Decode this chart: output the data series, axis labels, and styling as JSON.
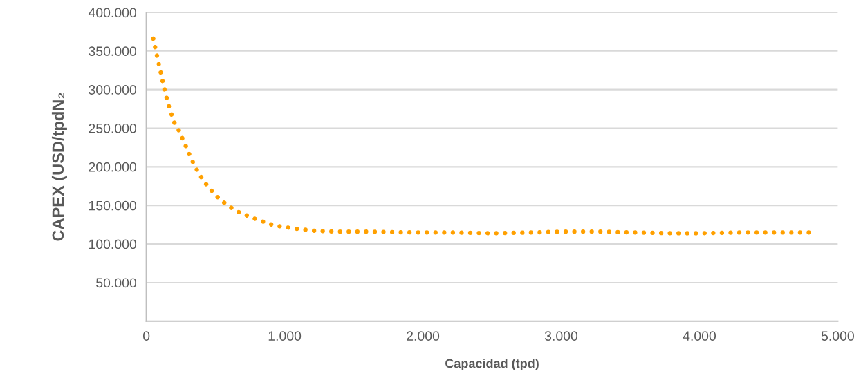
{
  "chart_data": {
    "type": "line",
    "xlabel": "Capacidad (tpd)",
    "ylabel": "CAPEX (USD/tpdN₂",
    "x": [
      50,
      85,
      110,
      135,
      165,
      200,
      230,
      280,
      325,
      380,
      450,
      535,
      590,
      645,
      780,
      925,
      1075,
      1225,
      1380,
      1615,
      1925,
      2200,
      2500,
      2800,
      3000,
      3300,
      3500,
      3800,
      4000,
      4300,
      4790
    ],
    "series": [
      {
        "color": "#ffa000",
        "values": [
          366000,
          337000,
          317000,
          297000,
          277000,
          258000,
          249000,
          229000,
          210000,
          191000,
          173000,
          157000,
          150000,
          143000,
          133000,
          124000,
          120000,
          117000,
          116000,
          116000,
          115000,
          115000,
          114000,
          115000,
          116000,
          116000,
          115000,
          114000,
          114000,
          115000,
          115000
        ]
      }
    ],
    "xlim": [
      0,
      5000
    ],
    "ylim": [
      0,
      400000
    ],
    "xticks": [
      0,
      {
        "value": 1000,
        "label": "1.000"
      },
      {
        "value": 2000,
        "label": "2.000"
      },
      {
        "value": 3000,
        "label": "3.000"
      },
      {
        "value": 4000,
        "label": "4.000"
      },
      {
        "value": 5000,
        "label": "5.000"
      }
    ],
    "yticks": [
      {
        "value": 50000,
        "label": "50.000"
      },
      {
        "value": 100000,
        "label": "100.000"
      },
      {
        "value": 150000,
        "label": "150.000"
      },
      {
        "value": 200000,
        "label": "200.000"
      },
      {
        "value": 250000,
        "label": "250.000"
      },
      {
        "value": 300000,
        "label": "300.000"
      },
      {
        "value": 350000,
        "label": "350.000"
      },
      {
        "value": 400000,
        "label": "400.000"
      }
    ],
    "grid": "y",
    "line_style": "dotted"
  }
}
